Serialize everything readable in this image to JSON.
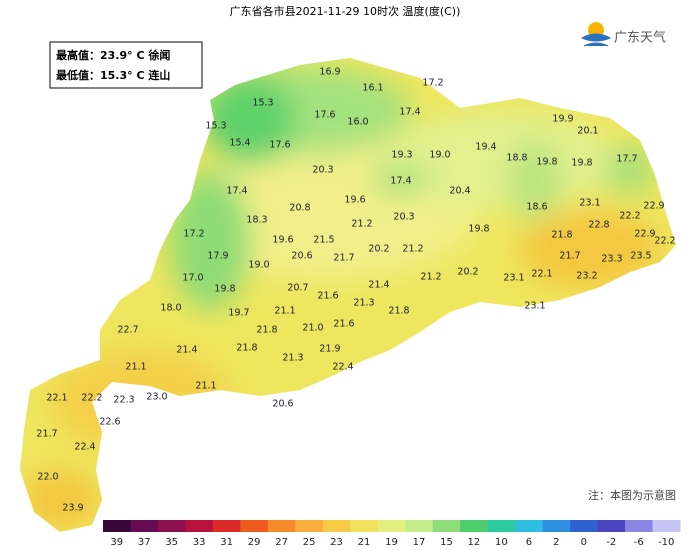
{
  "header": {
    "title": "广东省各市县2021-11-29 10时次 温度(度(C))",
    "logo": "广东天气"
  },
  "info": {
    "max": "最高值：23.9° C 徐闻",
    "min": "最低值：15.3° C 连山"
  },
  "stations": [
    "16.9",
    "16.1",
    "17.2",
    "15.3",
    "17.6",
    "16.0",
    "17.4",
    "19.9",
    "15.3",
    "20.1",
    "15.4",
    "17.6",
    "19.3",
    "19.0",
    "19.4",
    "18.8",
    "19.8",
    "19.8",
    "17.7",
    "20.3",
    "17.4",
    "20.4",
    "17.4",
    "19.6",
    "23.1",
    "22.9",
    "18.6",
    "20.8",
    "22.2",
    "18.3",
    "21.2",
    "20.3",
    "22.8",
    "19.8",
    "17.2",
    "22.9",
    "22.2",
    "21.8",
    "19.6",
    "21.5",
    "20.2",
    "21.2",
    "17.9",
    "20.6",
    "21.7",
    "21.7",
    "23.3",
    "23.5",
    "19.0",
    "21.4",
    "20.2",
    "21.2",
    "17.0",
    "23.1",
    "22.1",
    "23.2",
    "19.8",
    "20.7",
    "21.6",
    "21.3",
    "18.0",
    "23.1",
    "19.7",
    "21.1",
    "21.8",
    "22.7",
    "21.8",
    "21.0",
    "21.6",
    "21.4",
    "21.8",
    "21.9",
    "21.1",
    "21.3",
    "22.4",
    "21.1",
    "22.1",
    "22.2",
    "22.3",
    "23.0",
    "20.6",
    "22.6",
    "21.7",
    "22.4",
    "22.0",
    "23.9"
  ],
  "note": "注：本图为示意图",
  "watermark": "@广东天气",
  "legend": [
    {
      "label": 39,
      "color": "#3a0838"
    },
    {
      "label": 37,
      "color": "#650c55"
    },
    {
      "label": 35,
      "color": "#8c0f4e"
    },
    {
      "label": 33,
      "color": "#b8123c"
    },
    {
      "label": 31,
      "color": "#dc2a2a"
    },
    {
      "label": 29,
      "color": "#ee5a1e"
    },
    {
      "label": 27,
      "color": "#f68a2a"
    },
    {
      "label": 25,
      "color": "#f8ae3c"
    },
    {
      "label": 23,
      "color": "#f6cc46"
    },
    {
      "label": 21,
      "color": "#f0e25e"
    },
    {
      "label": 19,
      "color": "#e4ef80"
    },
    {
      "label": 17,
      "color": "#c4ee8c"
    },
    {
      "label": 15,
      "color": "#8edc7a"
    },
    {
      "label": 12,
      "color": "#4fcc6c"
    },
    {
      "label": 10,
      "color": "#2ecba0"
    },
    {
      "label": 6,
      "color": "#2fbde0"
    },
    {
      "label": 2,
      "color": "#2f8fe0"
    },
    {
      "label": 0,
      "color": "#2f62d0"
    },
    {
      "label": -2,
      "color": "#4a44c0"
    },
    {
      "label": -6,
      "color": "#8a84e2"
    },
    {
      "label": -10,
      "color": "#c6c4f2"
    }
  ]
}
